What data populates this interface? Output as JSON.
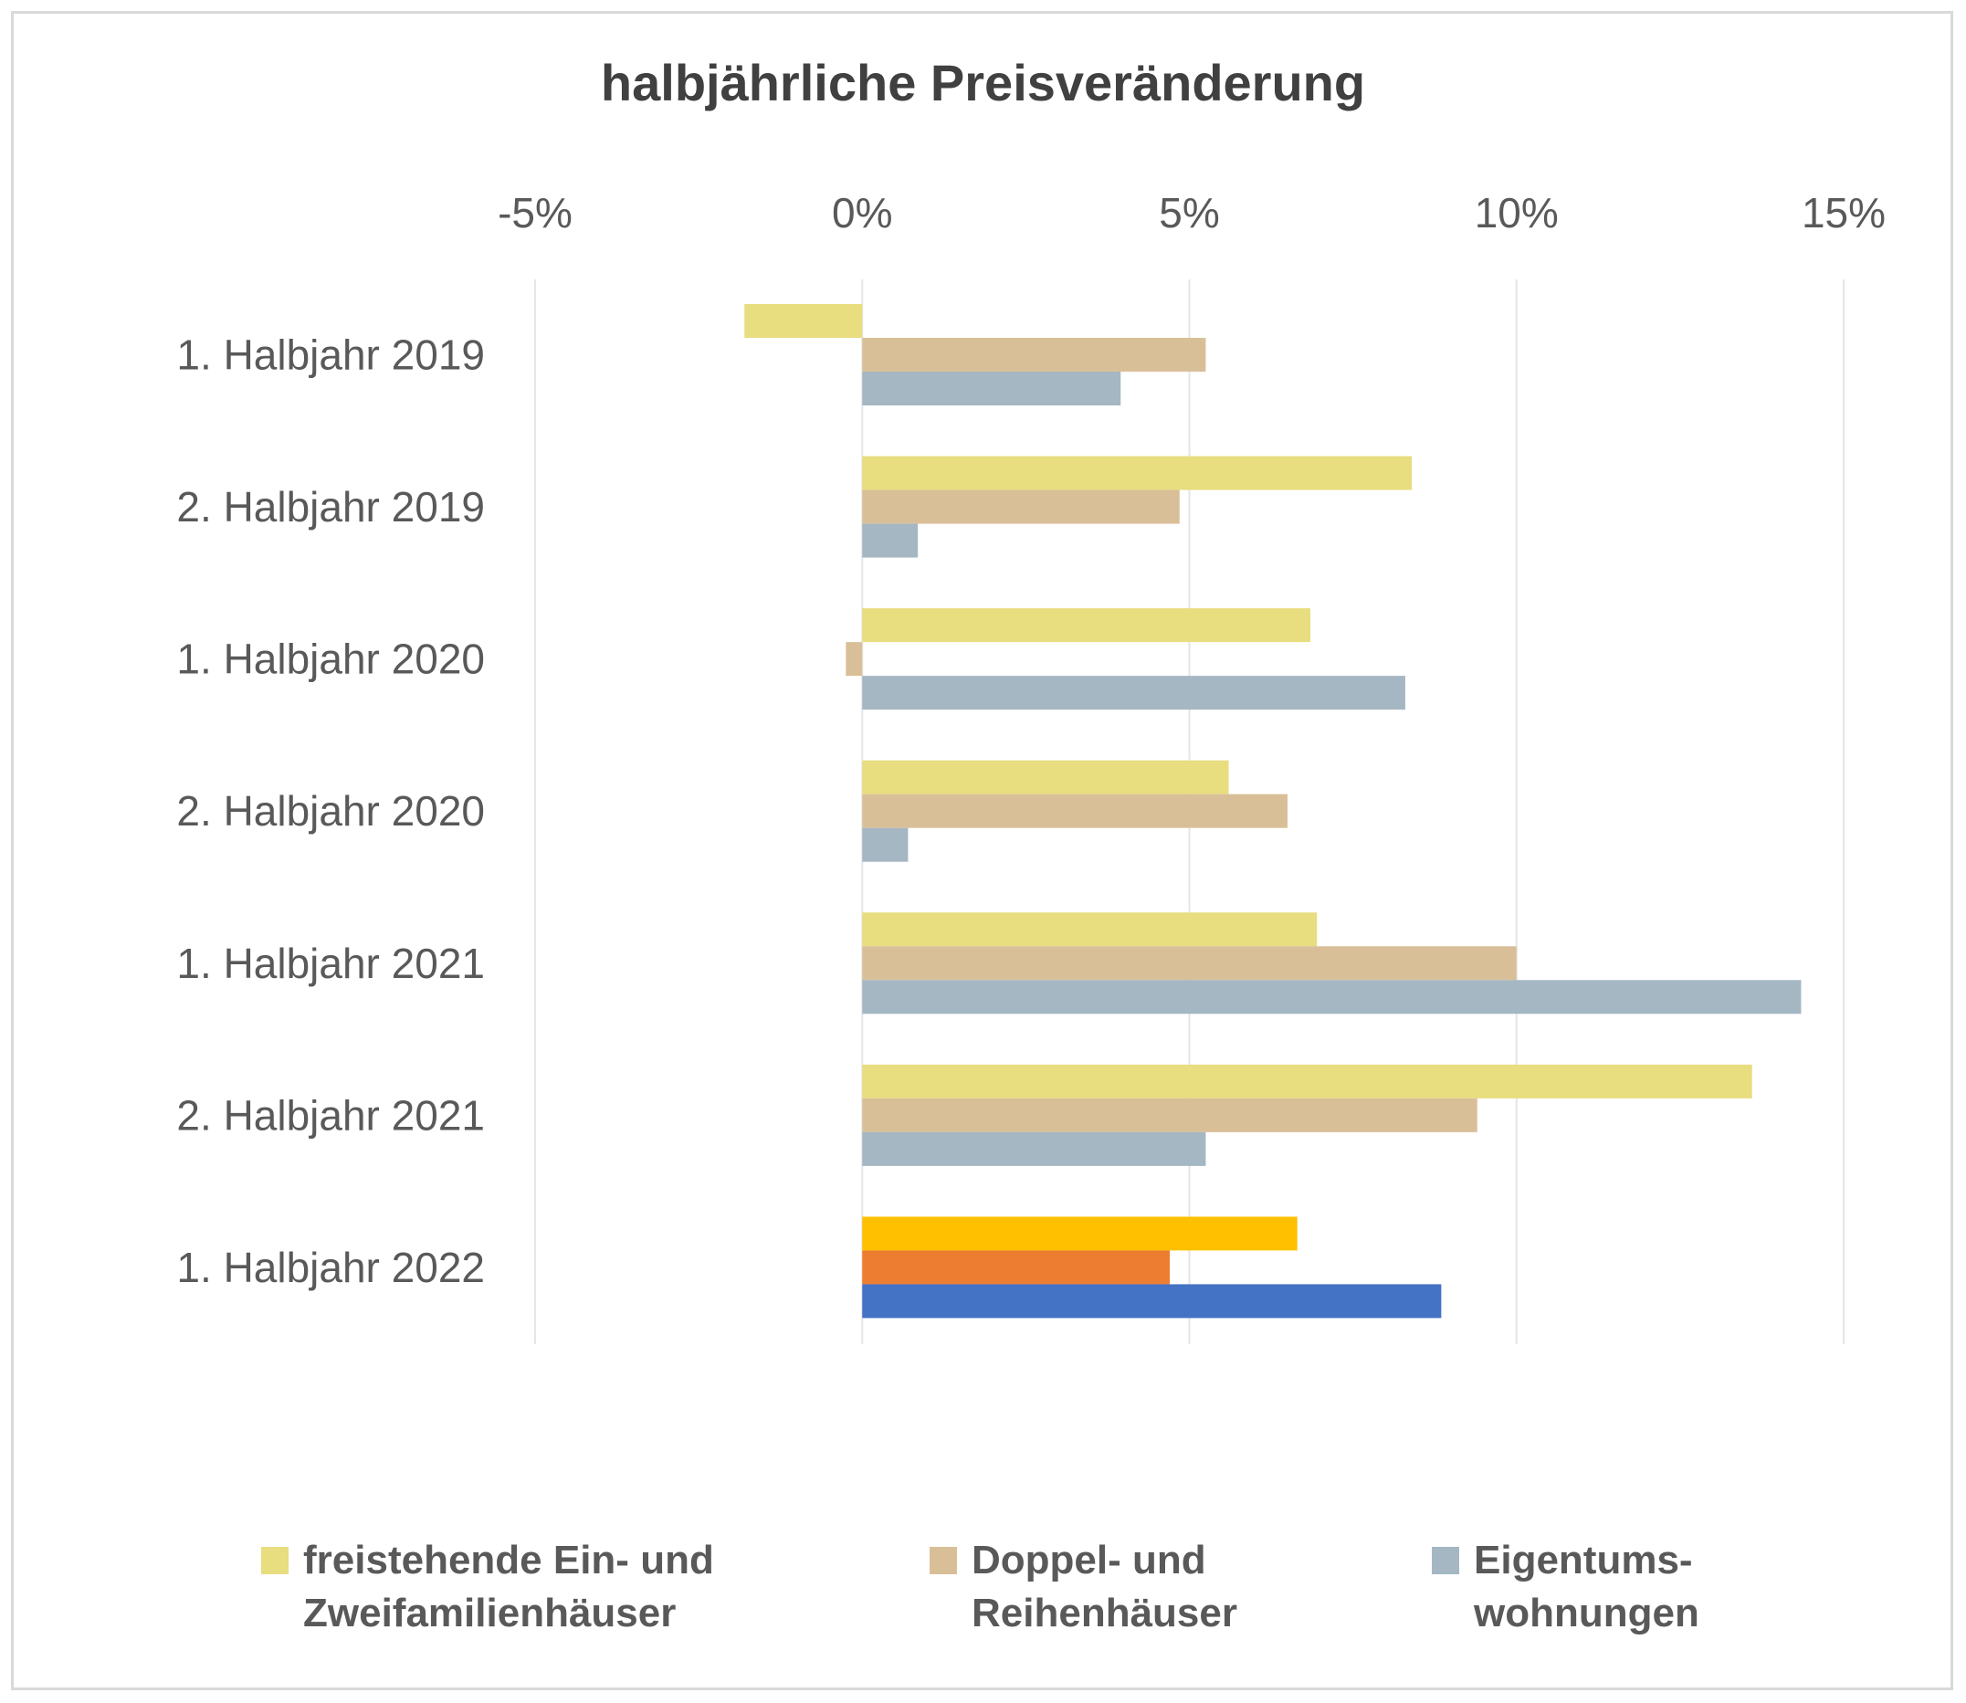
{
  "chart_data": {
    "type": "bar",
    "orientation": "horizontal",
    "title": "halbjährliche Preisveränderung",
    "categories": [
      "1. Halbjahr 2019",
      "2. Halbjahr 2019",
      "1. Halbjahr 2020",
      "2. Halbjahr 2020",
      "1. Halbjahr 2021",
      "2. Halbjahr 2021",
      "1. Halbjahr 2022"
    ],
    "x_ticks": [
      "-5%",
      "0%",
      "5%",
      "10%",
      "15%"
    ],
    "xlim": [
      -5,
      15
    ],
    "unit": "%",
    "grid": true,
    "legend_position": "bottom",
    "series": [
      {
        "name": "freistehende Ein- und Zweifamilienhäuser",
        "name_lines": [
          "freistehende Ein- und",
          "Zweifamilienhäuser"
        ],
        "color": "#E8DD7F",
        "highlight_color": "#FFC000",
        "values": [
          -1.8,
          8.4,
          6.85,
          5.6,
          6.95,
          13.6,
          6.65
        ]
      },
      {
        "name": "Doppel- und Reihenhäuser",
        "name_lines": [
          "Doppel- und",
          "Reihenhäuser"
        ],
        "color": "#D9BF98",
        "highlight_color": "#ED7D31",
        "values": [
          5.25,
          4.85,
          -0.25,
          6.5,
          10.0,
          9.4,
          4.7
        ]
      },
      {
        "name": "Eigentumswohnungen",
        "name_lines": [
          "Eigentums-",
          "wohnungen"
        ],
        "color": "#A4B7C3",
        "highlight_color": "#4472C4",
        "values": [
          3.95,
          0.85,
          8.3,
          0.7,
          14.35,
          5.25,
          8.85
        ]
      }
    ],
    "highlighted_category": "1. Halbjahr 2022"
  }
}
